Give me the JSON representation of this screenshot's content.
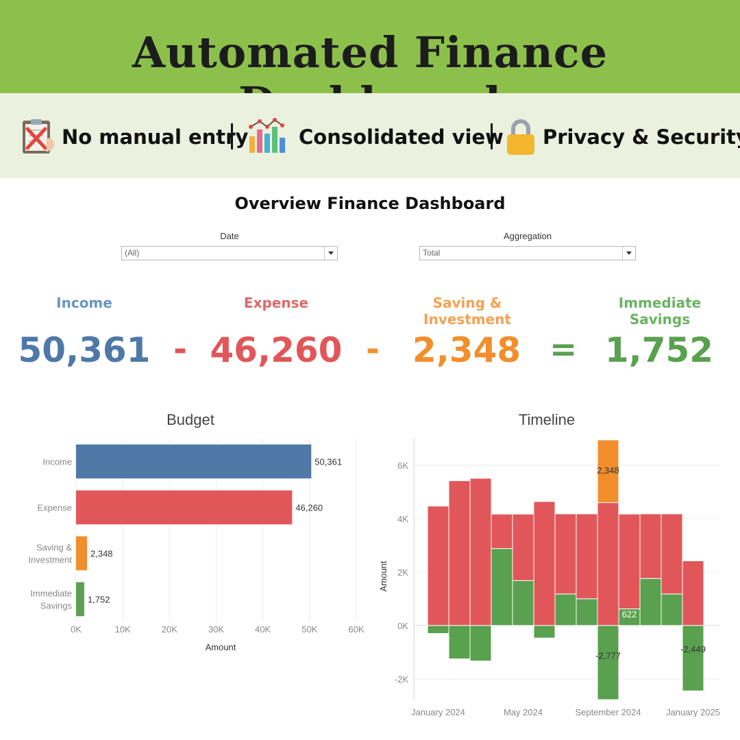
{
  "header": {
    "title": "Automated Finance Dashboard"
  },
  "features": [
    {
      "label": "No manual entry",
      "icon": "clipboard-cross-icon"
    },
    {
      "label": "Consolidated view",
      "icon": "bar-chart-icon"
    },
    {
      "label": "Privacy & Security",
      "icon": "padlock-icon"
    }
  ],
  "dashboard": {
    "title": "Overview Finance Dashboard"
  },
  "filters": {
    "date": {
      "label": "Date",
      "value": "(All)"
    },
    "aggregation": {
      "label": "Aggregation",
      "value": "Total"
    }
  },
  "kpis": {
    "income": {
      "label": "Income",
      "value": "50,361",
      "color": "#4e79a7"
    },
    "expense": {
      "label": "Expense",
      "value": "46,260",
      "color": "#e15759"
    },
    "saving": {
      "label": "Saving & Investment",
      "value": "2,348",
      "color": "#f28e2b"
    },
    "immediate": {
      "label": "Immediate Savings",
      "value": "1,752",
      "color": "#59a14f"
    },
    "op_minus": "-",
    "op_equals": "="
  },
  "chart_data": [
    {
      "type": "bar",
      "orientation": "horizontal",
      "title": "Budget",
      "xlabel": "Amount",
      "categories": [
        [
          "Income"
        ],
        [
          "Expense"
        ],
        [
          "Saving &",
          "Investment"
        ],
        [
          "Immediate",
          "Savings"
        ]
      ],
      "values": [
        50361,
        46260,
        2348,
        1752
      ],
      "value_labels": [
        "50,361",
        "46,260",
        "2,348",
        "1,752"
      ],
      "colors": [
        "#4e79a7",
        "#e15759",
        "#f28e2b",
        "#59a14f"
      ],
      "xlim": [
        0,
        60000
      ],
      "xticks": [
        0,
        10000,
        20000,
        30000,
        40000,
        50000,
        60000
      ],
      "xtick_labels": [
        "0K",
        "10K",
        "20K",
        "30K",
        "40K",
        "50K",
        "60K"
      ],
      "grid": true
    },
    {
      "type": "bar",
      "stacked": true,
      "title": "Timeline",
      "ylabel": "Amount",
      "x": [
        "2024-01",
        "2024-02",
        "2024-03",
        "2024-04",
        "2024-05",
        "2024-06",
        "2024-07",
        "2024-08",
        "2024-09",
        "2024-10",
        "2024-11",
        "2024-12",
        "2025-01"
      ],
      "xtick_labels": [
        {
          "label": "January 2024",
          "at": "2024-01"
        },
        {
          "label": "May 2024",
          "at": "2024-05"
        },
        {
          "label": "September 2024",
          "at": "2024-09"
        },
        {
          "label": "January 2025",
          "at": "2025-01"
        }
      ],
      "series": [
        {
          "color": "#59a14f",
          "values": [
            -300,
            -1250,
            -1330,
            2880,
            1680,
            -470,
            1180,
            1000,
            -2777,
            622,
            1760,
            1180,
            -2449
          ]
        },
        {
          "color": "#e15759",
          "values": [
            4470,
            5420,
            5510,
            1290,
            2490,
            4640,
            3000,
            3180,
            4600,
            3550,
            2420,
            3000,
            2420
          ]
        },
        {
          "color": "#f28e2b",
          "values": [
            0,
            0,
            0,
            0,
            0,
            0,
            0,
            0,
            2348,
            0,
            0,
            0,
            0
          ]
        }
      ],
      "data_labels": [
        {
          "x": "2024-09",
          "text": "2,348"
        },
        {
          "x": "2024-09",
          "text": "-2,777"
        },
        {
          "x": "2024-10",
          "text": "622"
        },
        {
          "x": "2025-01",
          "text": "-2,449"
        }
      ],
      "ylim": [
        -2800,
        7000
      ],
      "yticks": [
        -2000,
        0,
        2000,
        4000,
        6000
      ],
      "ytick_labels": [
        "-2K",
        "0K",
        "2K",
        "4K",
        "6K"
      ],
      "grid": true
    }
  ]
}
